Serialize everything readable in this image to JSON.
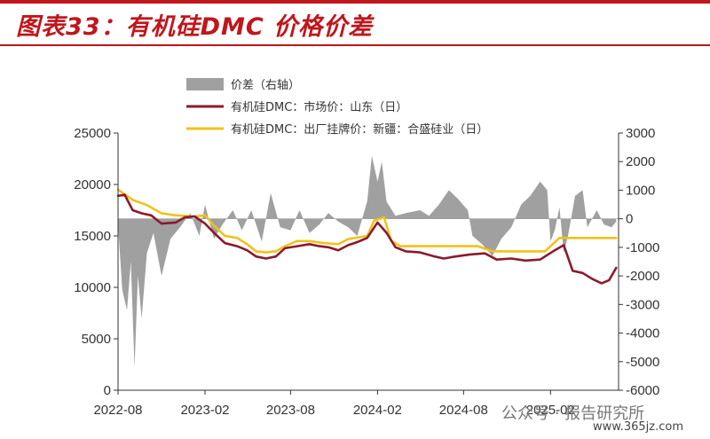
{
  "title": "图表33：有机硅DMC 价格价差",
  "watermark": {
    "account": "公众号 · 报告研究所",
    "site": "www.365jz.com"
  },
  "chart_data": {
    "type": "line",
    "title": "图表33：有机硅DMC 价格价差",
    "legend": [
      {
        "name": "价差（右轴）",
        "color": "#a0a0a0",
        "kind": "area"
      },
      {
        "name": "有机硅DMC：市场价：山东（日）",
        "color": "#8b1a2b",
        "kind": "line"
      },
      {
        "name": "有机硅DMC：出厂挂牌价：新疆：合盛硅业（日）",
        "color": "#f0c21a",
        "kind": "line"
      }
    ],
    "legend_position": "top-left",
    "grid": false,
    "x_ticks": [
      "2022-08",
      "2023-02",
      "2023-08",
      "2024-02",
      "2024-08",
      "2025-02"
    ],
    "x_range": [
      "2022-08",
      "2025-06"
    ],
    "y_left": {
      "ticks": [
        "0",
        "5000",
        "10000",
        "15000",
        "20000",
        "25000"
      ],
      "range": [
        0,
        25000
      ]
    },
    "y_right": {
      "ticks": [
        "-6000",
        "-5000",
        "-4000",
        "-3000",
        "-2000",
        "-1000",
        "0",
        "1000",
        "2000",
        "3000"
      ],
      "range": [
        -6000,
        3000
      ]
    },
    "series": [
      {
        "name": "有机硅DMC：市场价：山东（日）",
        "axis": "left",
        "points": [
          [
            "2022-08-01",
            18900
          ],
          [
            "2022-08-15",
            19000
          ],
          [
            "2022-09-01",
            17500
          ],
          [
            "2022-09-20",
            17200
          ],
          [
            "2022-10-10",
            17000
          ],
          [
            "2022-11-01",
            16200
          ],
          [
            "2022-12-01",
            16300
          ],
          [
            "2022-12-20",
            16800
          ],
          [
            "2023-01-10",
            16900
          ],
          [
            "2023-02-01",
            16200
          ],
          [
            "2023-02-20",
            15300
          ],
          [
            "2023-03-15",
            14300
          ],
          [
            "2023-04-10",
            14000
          ],
          [
            "2023-05-01",
            13600
          ],
          [
            "2023-05-20",
            13000
          ],
          [
            "2023-06-10",
            12800
          ],
          [
            "2023-07-01",
            13000
          ],
          [
            "2023-07-20",
            13800
          ],
          [
            "2023-08-15",
            14000
          ],
          [
            "2023-09-10",
            14200
          ],
          [
            "2023-10-01",
            14000
          ],
          [
            "2023-10-20",
            13900
          ],
          [
            "2023-11-10",
            13600
          ],
          [
            "2023-12-01",
            14100
          ],
          [
            "2023-12-20",
            14400
          ],
          [
            "2024-01-10",
            14800
          ],
          [
            "2024-02-01",
            16300
          ],
          [
            "2024-02-20",
            15300
          ],
          [
            "2024-03-10",
            13900
          ],
          [
            "2024-04-01",
            13500
          ],
          [
            "2024-05-01",
            13400
          ],
          [
            "2024-06-01",
            13000
          ],
          [
            "2024-06-20",
            12800
          ],
          [
            "2024-07-15",
            13000
          ],
          [
            "2024-08-15",
            13200
          ],
          [
            "2024-09-15",
            13300
          ],
          [
            "2024-10-10",
            12700
          ],
          [
            "2024-11-10",
            12800
          ],
          [
            "2024-12-10",
            12600
          ],
          [
            "2025-01-10",
            12700
          ],
          [
            "2025-02-10",
            13600
          ],
          [
            "2025-03-01",
            14100
          ],
          [
            "2025-03-20",
            11600
          ],
          [
            "2025-04-10",
            11400
          ],
          [
            "2025-05-01",
            10800
          ],
          [
            "2025-05-20",
            10400
          ],
          [
            "2025-06-05",
            10700
          ],
          [
            "2025-06-20",
            11900
          ]
        ]
      },
      {
        "name": "有机硅DMC：出厂挂牌价：新疆：合盛硅业（日）",
        "axis": "left",
        "points": [
          [
            "2022-08-01",
            19500
          ],
          [
            "2022-09-01",
            18500
          ],
          [
            "2022-10-01",
            18000
          ],
          [
            "2022-11-01",
            17200
          ],
          [
            "2022-12-01",
            17000
          ],
          [
            "2023-01-10",
            16900
          ],
          [
            "2023-02-01",
            17000
          ],
          [
            "2023-02-20",
            16000
          ],
          [
            "2023-03-15",
            15000
          ],
          [
            "2023-04-10",
            14800
          ],
          [
            "2023-05-01",
            14200
          ],
          [
            "2023-05-20",
            13500
          ],
          [
            "2023-06-10",
            13400
          ],
          [
            "2023-07-01",
            13500
          ],
          [
            "2023-07-20",
            14000
          ],
          [
            "2023-08-15",
            14500
          ],
          [
            "2023-09-10",
            14500
          ],
          [
            "2023-10-10",
            14300
          ],
          [
            "2023-11-10",
            14200
          ],
          [
            "2023-12-01",
            14700
          ],
          [
            "2024-01-10",
            15000
          ],
          [
            "2024-01-25",
            16500
          ],
          [
            "2024-02-15",
            16800
          ],
          [
            "2024-03-01",
            14500
          ],
          [
            "2024-03-20",
            14000
          ],
          [
            "2024-05-01",
            14000
          ],
          [
            "2024-07-01",
            14000
          ],
          [
            "2024-09-01",
            14000
          ],
          [
            "2024-10-01",
            13500
          ],
          [
            "2024-12-01",
            13500
          ],
          [
            "2025-01-20",
            13500
          ],
          [
            "2025-02-20",
            14800
          ],
          [
            "2025-04-01",
            14800
          ],
          [
            "2025-06-20",
            14800
          ]
        ]
      },
      {
        "name": "价差（右轴）",
        "axis": "right",
        "points": [
          [
            "2022-08-01",
            -200
          ],
          [
            "2022-08-10",
            -2500
          ],
          [
            "2022-08-20",
            -3200
          ],
          [
            "2022-08-28",
            -1500
          ],
          [
            "2022-09-05",
            -5200
          ],
          [
            "2022-09-12",
            -2000
          ],
          [
            "2022-09-20",
            -3500
          ],
          [
            "2022-10-01",
            -1200
          ],
          [
            "2022-10-15",
            -500
          ],
          [
            "2022-11-01",
            -2000
          ],
          [
            "2022-11-20",
            -700
          ],
          [
            "2022-12-10",
            -300
          ],
          [
            "2023-01-01",
            200
          ],
          [
            "2023-01-20",
            -600
          ],
          [
            "2023-02-01",
            500
          ],
          [
            "2023-02-20",
            -700
          ],
          [
            "2023-03-10",
            -200
          ],
          [
            "2023-04-01",
            300
          ],
          [
            "2023-04-20",
            -400
          ],
          [
            "2023-05-10",
            300
          ],
          [
            "2023-06-01",
            -800
          ],
          [
            "2023-06-20",
            900
          ],
          [
            "2023-07-10",
            -300
          ],
          [
            "2023-08-01",
            -400
          ],
          [
            "2023-08-20",
            300
          ],
          [
            "2023-09-10",
            -500
          ],
          [
            "2023-10-01",
            -200
          ],
          [
            "2023-10-20",
            200
          ],
          [
            "2023-11-10",
            -100
          ],
          [
            "2023-12-01",
            -300
          ],
          [
            "2023-12-20",
            -600
          ],
          [
            "2024-01-10",
            600
          ],
          [
            "2024-01-20",
            2200
          ],
          [
            "2024-02-01",
            1300
          ],
          [
            "2024-02-10",
            2000
          ],
          [
            "2024-02-20",
            600
          ],
          [
            "2024-03-10",
            100
          ],
          [
            "2024-04-01",
            200
          ],
          [
            "2024-05-01",
            300
          ],
          [
            "2024-05-20",
            100
          ],
          [
            "2024-06-10",
            500
          ],
          [
            "2024-07-01",
            1000
          ],
          [
            "2024-07-20",
            700
          ],
          [
            "2024-08-10",
            300
          ],
          [
            "2024-08-20",
            -600
          ],
          [
            "2024-09-10",
            -900
          ],
          [
            "2024-10-01",
            -1300
          ],
          [
            "2024-10-20",
            -700
          ],
          [
            "2024-11-10",
            -300
          ],
          [
            "2024-12-01",
            500
          ],
          [
            "2024-12-20",
            800
          ],
          [
            "2025-01-10",
            1300
          ],
          [
            "2025-01-25",
            1000
          ],
          [
            "2025-02-01",
            -800
          ],
          [
            "2025-02-10",
            -400
          ],
          [
            "2025-02-20",
            400
          ],
          [
            "2025-03-01",
            -1200
          ],
          [
            "2025-03-10",
            -600
          ],
          [
            "2025-03-25",
            800
          ],
          [
            "2025-04-10",
            1000
          ],
          [
            "2025-04-20",
            -300
          ],
          [
            "2025-05-10",
            300
          ],
          [
            "2025-05-25",
            -200
          ],
          [
            "2025-06-10",
            -300
          ],
          [
            "2025-06-20",
            -100
          ]
        ]
      }
    ]
  }
}
